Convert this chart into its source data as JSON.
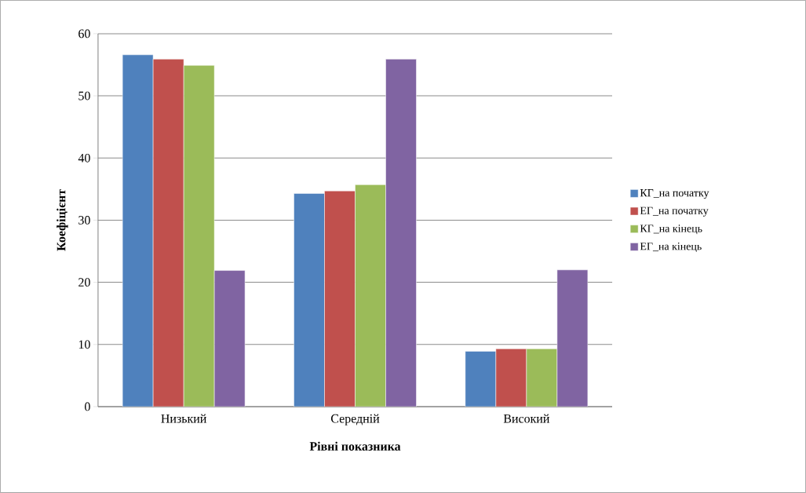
{
  "chart_data": {
    "type": "bar",
    "xlabel": "Рівні показника",
    "ylabel": "Коефіцієнт",
    "categories": [
      "Низький",
      "Середній",
      "Високий"
    ],
    "series": [
      {
        "name": "КГ_на початку",
        "color": "#4f81bd",
        "values": [
          56.6,
          34.3,
          8.9
        ]
      },
      {
        "name": "ЕГ_на початку",
        "color": "#c0504d",
        "values": [
          55.9,
          34.7,
          9.3
        ]
      },
      {
        "name": "КГ_на кінець",
        "color": "#9bbb59",
        "values": [
          54.9,
          35.7,
          9.3
        ]
      },
      {
        "name": "ЕГ_на кінець",
        "color": "#8064a2",
        "values": [
          21.9,
          55.9,
          22.0
        ]
      }
    ],
    "ylim": [
      0,
      60
    ],
    "yticks": [
      0,
      10,
      20,
      30,
      40,
      50,
      60
    ],
    "grid": "y",
    "legend": "right"
  }
}
